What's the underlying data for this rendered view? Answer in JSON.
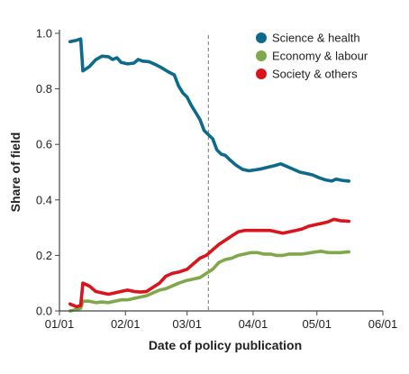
{
  "chart_data": {
    "type": "line",
    "xlabel": "Date of policy publication",
    "ylabel": "Share of field",
    "xlim": [
      "2020-01-01",
      "2020-06-01"
    ],
    "ylim": [
      0,
      1.0
    ],
    "x_ticks": [
      "01/01",
      "02/01",
      "03/01",
      "04/01",
      "05/01",
      "06/01"
    ],
    "x_tick_dates": [
      "2020-01-01",
      "2020-02-01",
      "2020-03-01",
      "2020-04-01",
      "2020-05-01",
      "2020-06-01"
    ],
    "y_ticks": [
      "0.0",
      "0.2",
      "0.4",
      "0.6",
      "0.8",
      "1.0"
    ],
    "y_tick_values": [
      0,
      0.2,
      0.4,
      0.6,
      0.8,
      1.0
    ],
    "grid": false,
    "legend_position": "top-right",
    "vertical_reference_line": {
      "x": "2020-03-11",
      "style": "dashed"
    },
    "series": [
      {
        "name": "Science & health",
        "color": "#0d6a8a",
        "points": [
          [
            "2020-01-06",
            0.97
          ],
          [
            "2020-01-09",
            0.975
          ],
          [
            "2020-01-11",
            0.98
          ],
          [
            "2020-01-12",
            0.865
          ],
          [
            "2020-01-15",
            0.88
          ],
          [
            "2020-01-18",
            0.905
          ],
          [
            "2020-01-21",
            0.918
          ],
          [
            "2020-01-24",
            0.916
          ],
          [
            "2020-01-26",
            0.906
          ],
          [
            "2020-01-28",
            0.912
          ],
          [
            "2020-01-30",
            0.895
          ],
          [
            "2020-02-02",
            0.89
          ],
          [
            "2020-02-05",
            0.893
          ],
          [
            "2020-02-07",
            0.906
          ],
          [
            "2020-02-09",
            0.9
          ],
          [
            "2020-02-12",
            0.898
          ],
          [
            "2020-02-15",
            0.888
          ],
          [
            "2020-02-18",
            0.876
          ],
          [
            "2020-02-21",
            0.862
          ],
          [
            "2020-02-24",
            0.85
          ],
          [
            "2020-02-26",
            0.81
          ],
          [
            "2020-02-28",
            0.785
          ],
          [
            "2020-03-01",
            0.77
          ],
          [
            "2020-03-03",
            0.74
          ],
          [
            "2020-03-05",
            0.715
          ],
          [
            "2020-03-07",
            0.69
          ],
          [
            "2020-03-09",
            0.65
          ],
          [
            "2020-03-11",
            0.635
          ],
          [
            "2020-03-13",
            0.62
          ],
          [
            "2020-03-15",
            0.58
          ],
          [
            "2020-03-17",
            0.565
          ],
          [
            "2020-03-19",
            0.56
          ],
          [
            "2020-03-21",
            0.545
          ],
          [
            "2020-03-24",
            0.525
          ],
          [
            "2020-03-27",
            0.51
          ],
          [
            "2020-03-30",
            0.505
          ],
          [
            "2020-04-02",
            0.508
          ],
          [
            "2020-04-05",
            0.512
          ],
          [
            "2020-04-08",
            0.518
          ],
          [
            "2020-04-11",
            0.523
          ],
          [
            "2020-04-14",
            0.53
          ],
          [
            "2020-04-17",
            0.52
          ],
          [
            "2020-04-20",
            0.51
          ],
          [
            "2020-04-23",
            0.5
          ],
          [
            "2020-04-26",
            0.495
          ],
          [
            "2020-04-29",
            0.49
          ],
          [
            "2020-05-02",
            0.48
          ],
          [
            "2020-05-05",
            0.472
          ],
          [
            "2020-05-08",
            0.468
          ],
          [
            "2020-05-10",
            0.475
          ],
          [
            "2020-05-13",
            0.47
          ],
          [
            "2020-05-16",
            0.468
          ]
        ]
      },
      {
        "name": "Economy & labour",
        "color": "#7fa84a",
        "points": [
          [
            "2020-01-06",
            0.0
          ],
          [
            "2020-01-09",
            0.005
          ],
          [
            "2020-01-11",
            0.01
          ],
          [
            "2020-01-12",
            0.035
          ],
          [
            "2020-01-15",
            0.035
          ],
          [
            "2020-01-18",
            0.03
          ],
          [
            "2020-01-21",
            0.032
          ],
          [
            "2020-01-24",
            0.03
          ],
          [
            "2020-01-27",
            0.035
          ],
          [
            "2020-01-30",
            0.04
          ],
          [
            "2020-02-02",
            0.04
          ],
          [
            "2020-02-05",
            0.045
          ],
          [
            "2020-02-08",
            0.05
          ],
          [
            "2020-02-11",
            0.055
          ],
          [
            "2020-02-14",
            0.065
          ],
          [
            "2020-02-17",
            0.075
          ],
          [
            "2020-02-20",
            0.08
          ],
          [
            "2020-02-23",
            0.09
          ],
          [
            "2020-02-26",
            0.1
          ],
          [
            "2020-03-01",
            0.11
          ],
          [
            "2020-03-04",
            0.115
          ],
          [
            "2020-03-07",
            0.12
          ],
          [
            "2020-03-10",
            0.135
          ],
          [
            "2020-03-13",
            0.15
          ],
          [
            "2020-03-16",
            0.175
          ],
          [
            "2020-03-19",
            0.185
          ],
          [
            "2020-03-22",
            0.19
          ],
          [
            "2020-03-25",
            0.2
          ],
          [
            "2020-03-28",
            0.205
          ],
          [
            "2020-03-31",
            0.21
          ],
          [
            "2020-04-03",
            0.21
          ],
          [
            "2020-04-06",
            0.205
          ],
          [
            "2020-04-09",
            0.205
          ],
          [
            "2020-04-12",
            0.2
          ],
          [
            "2020-04-15",
            0.2
          ],
          [
            "2020-04-18",
            0.205
          ],
          [
            "2020-04-21",
            0.205
          ],
          [
            "2020-04-24",
            0.205
          ],
          [
            "2020-04-27",
            0.208
          ],
          [
            "2020-04-30",
            0.212
          ],
          [
            "2020-05-03",
            0.215
          ],
          [
            "2020-05-06",
            0.21
          ],
          [
            "2020-05-09",
            0.21
          ],
          [
            "2020-05-12",
            0.21
          ],
          [
            "2020-05-16",
            0.213
          ]
        ]
      },
      {
        "name": "Society & others",
        "color": "#d9141c",
        "points": [
          [
            "2020-01-06",
            0.025
          ],
          [
            "2020-01-09",
            0.015
          ],
          [
            "2020-01-11",
            0.02
          ],
          [
            "2020-01-12",
            0.1
          ],
          [
            "2020-01-15",
            0.09
          ],
          [
            "2020-01-18",
            0.07
          ],
          [
            "2020-01-21",
            0.065
          ],
          [
            "2020-01-24",
            0.06
          ],
          [
            "2020-01-27",
            0.065
          ],
          [
            "2020-01-30",
            0.07
          ],
          [
            "2020-02-02",
            0.075
          ],
          [
            "2020-02-05",
            0.07
          ],
          [
            "2020-02-08",
            0.068
          ],
          [
            "2020-02-11",
            0.07
          ],
          [
            "2020-02-14",
            0.085
          ],
          [
            "2020-02-17",
            0.1
          ],
          [
            "2020-02-20",
            0.125
          ],
          [
            "2020-02-23",
            0.135
          ],
          [
            "2020-02-26",
            0.14
          ],
          [
            "2020-03-01",
            0.15
          ],
          [
            "2020-03-04",
            0.17
          ],
          [
            "2020-03-07",
            0.19
          ],
          [
            "2020-03-10",
            0.2
          ],
          [
            "2020-03-13",
            0.22
          ],
          [
            "2020-03-16",
            0.24
          ],
          [
            "2020-03-19",
            0.255
          ],
          [
            "2020-03-22",
            0.27
          ],
          [
            "2020-03-25",
            0.285
          ],
          [
            "2020-03-28",
            0.29
          ],
          [
            "2020-03-31",
            0.29
          ],
          [
            "2020-04-03",
            0.29
          ],
          [
            "2020-04-06",
            0.29
          ],
          [
            "2020-04-09",
            0.29
          ],
          [
            "2020-04-12",
            0.285
          ],
          [
            "2020-04-15",
            0.28
          ],
          [
            "2020-04-18",
            0.285
          ],
          [
            "2020-04-21",
            0.29
          ],
          [
            "2020-04-24",
            0.295
          ],
          [
            "2020-04-27",
            0.305
          ],
          [
            "2020-04-30",
            0.31
          ],
          [
            "2020-05-03",
            0.315
          ],
          [
            "2020-05-06",
            0.32
          ],
          [
            "2020-05-09",
            0.33
          ],
          [
            "2020-05-12",
            0.325
          ],
          [
            "2020-05-16",
            0.323
          ]
        ]
      }
    ]
  }
}
